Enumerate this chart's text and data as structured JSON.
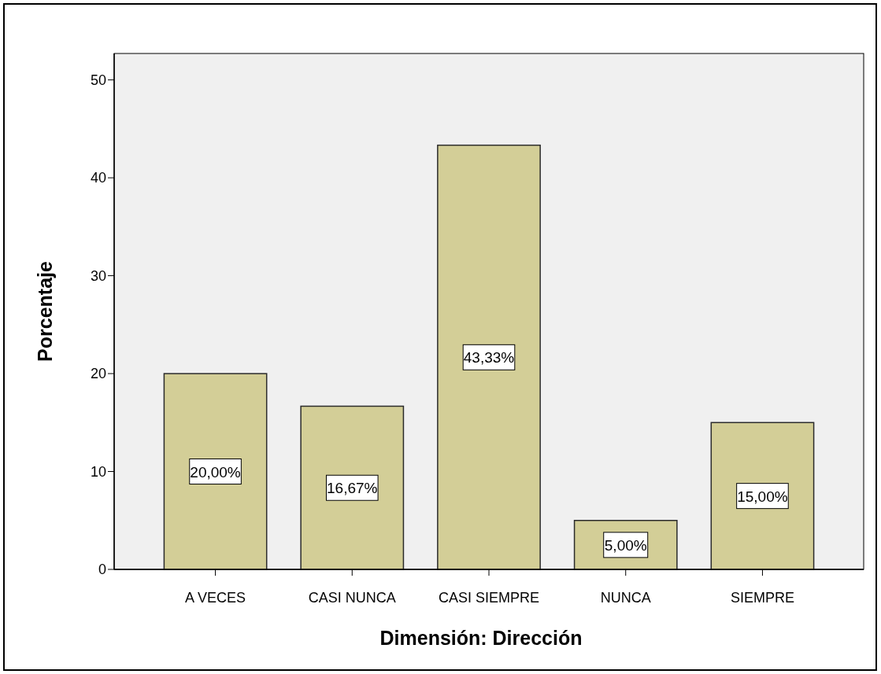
{
  "chart_data": {
    "type": "bar",
    "xlabel": "Dimensión: Dirección",
    "ylabel": "Porcentaje",
    "categories": [
      "A VECES",
      "CASI NUNCA",
      "CASI SIEMPRE",
      "NUNCA",
      "SIEMPRE"
    ],
    "values": [
      20,
      16.67,
      43.33,
      5,
      15
    ],
    "value_labels": [
      "20,00%",
      "16,67%",
      "43,33%",
      "5,00%",
      "15,00%"
    ],
    "color": "#d3ce97",
    "ylim": [
      0,
      52.7
    ],
    "yticks": [
      0,
      10,
      20,
      30,
      40,
      50
    ],
    "grid": false
  }
}
